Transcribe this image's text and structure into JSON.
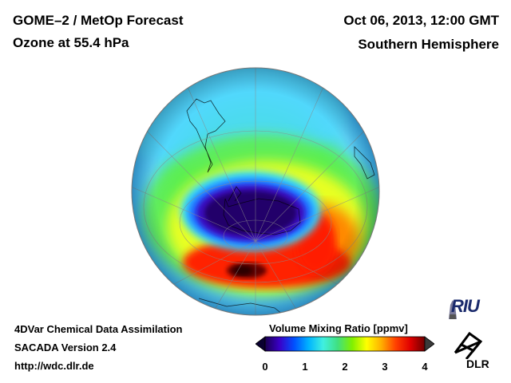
{
  "header": {
    "title_line1": "GOME–2 / MetOp Forecast",
    "title_line2": "Ozone at 55.4 hPa",
    "date": "Oct 06, 2013, 12:00 GMT",
    "region": "Southern Hemisphere"
  },
  "footer": {
    "line1": "4DVar Chemical Data Assimilation",
    "line2": "SACADA Version 2.4",
    "line3": "http://wdc.dlr.de"
  },
  "colorbar": {
    "title": "Volume Mixing Ratio [ppmv]",
    "ticks": [
      "0",
      "1",
      "2",
      "3",
      "4"
    ],
    "range": [
      0,
      4
    ],
    "colors": [
      "#1a0050",
      "#3a00c8",
      "#0050ff",
      "#00b4ff",
      "#40f0e0",
      "#40e080",
      "#80f000",
      "#ffff00",
      "#ffb000",
      "#ff4000",
      "#e00000",
      "#700000"
    ]
  },
  "logos": {
    "riu": "RIU",
    "dlr": "DLR"
  },
  "map": {
    "projection": "orthographic",
    "hemisphere": "south",
    "ozone_hole_ppmv": 0.4,
    "collar_max_ppmv": 4.0
  }
}
